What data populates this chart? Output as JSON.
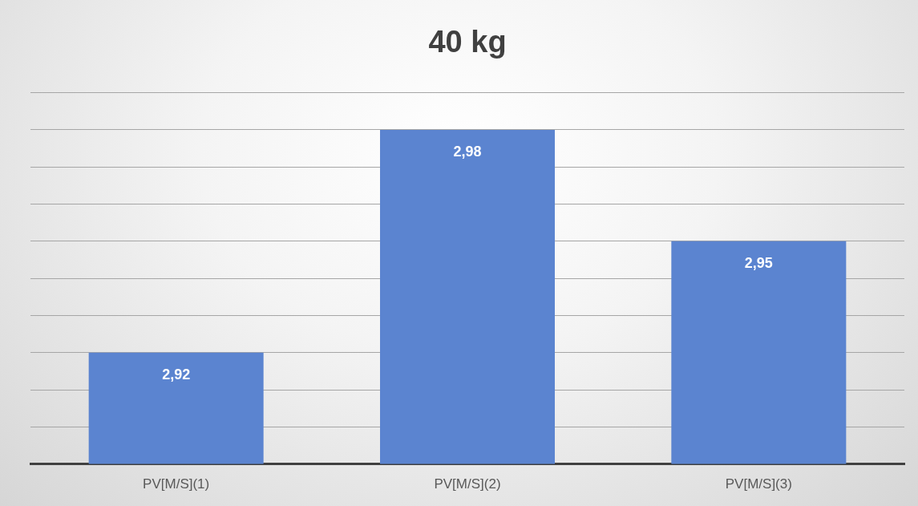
{
  "chart_data": {
    "type": "bar",
    "title": "40 kg",
    "categories": [
      "PV[M/S](1)",
      "PV[M/S](2)",
      "PV[M/S](3)"
    ],
    "values": [
      2.92,
      2.98,
      2.95
    ],
    "color": "#5b84d0",
    "value_labels": [
      "2,92",
      "2,98",
      "2,95"
    ],
    "ylim": [
      2.89,
      2.99
    ],
    "yticks": [
      {
        "value": 2.89,
        "label": null
      },
      {
        "value": 2.9,
        "label": null
      },
      {
        "value": 2.91,
        "label": null
      },
      {
        "value": 2.92,
        "label": null
      },
      {
        "value": 2.93,
        "label": null
      },
      {
        "value": 2.94,
        "label": null
      },
      {
        "value": 2.95,
        "label": null
      },
      {
        "value": 2.96,
        "label": null
      },
      {
        "value": 2.97,
        "label": null
      },
      {
        "value": 2.98,
        "label": null
      },
      {
        "value": 2.99,
        "label": null
      }
    ],
    "grid": "y",
    "tick_labels": "x",
    "legend": false
  }
}
